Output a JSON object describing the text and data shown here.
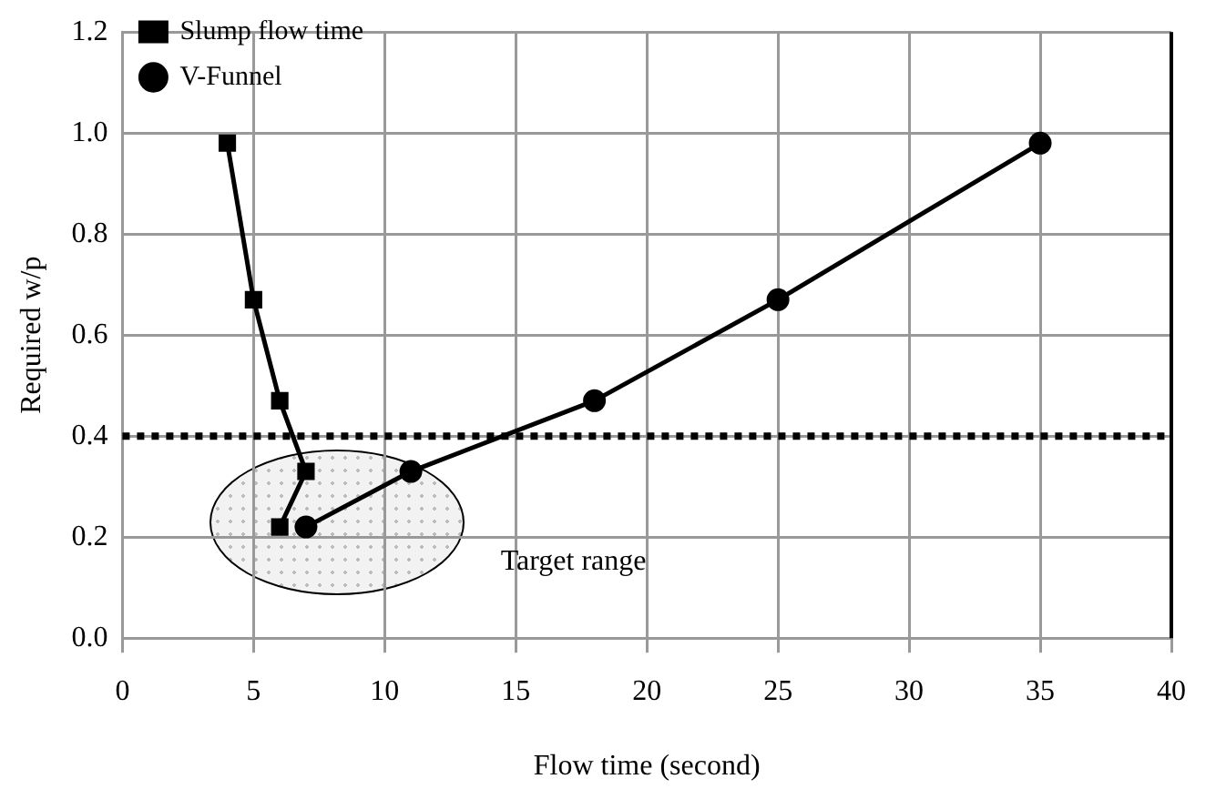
{
  "chart_data": {
    "type": "line",
    "xlabel": "Flow time (second)",
    "ylabel": "Required w/p",
    "xlim": [
      0,
      40
    ],
    "xticks": [
      0,
      5,
      10,
      15,
      20,
      25,
      30,
      35,
      40
    ],
    "ylim": [
      0,
      1.2
    ],
    "yticks": [
      {
        "value": 0,
        "label": "0.0"
      },
      {
        "value": 0.2,
        "label": "0.2"
      },
      {
        "value": 0.4,
        "label": "0.4"
      },
      {
        "value": 0.6,
        "label": "0.6"
      },
      {
        "value": 0.8,
        "label": "0.8"
      },
      {
        "value": 1,
        "label": "1.0"
      },
      {
        "value": 1.2,
        "label": "1.2"
      }
    ],
    "series": [
      {
        "name": "Slump flow time",
        "color": "#000000",
        "marker": "square",
        "x": [
          4,
          5,
          6,
          7,
          6
        ],
        "values": [
          0.98,
          0.67,
          0.47,
          0.33,
          0.22
        ]
      },
      {
        "name": "V-Funnel",
        "color": "#000000",
        "marker": "circle",
        "x": [
          7,
          11,
          18,
          25,
          35
        ],
        "values": [
          0.22,
          0.33,
          0.47,
          0.67,
          0.98
        ]
      }
    ],
    "ref_lines": [
      {
        "axis": "y",
        "value": 0.4,
        "color": "#000000",
        "line_style": "dotted"
      }
    ],
    "annotations": [
      "Target range"
    ],
    "grid": true,
    "legend": "top left",
    "line_style": "solid"
  }
}
